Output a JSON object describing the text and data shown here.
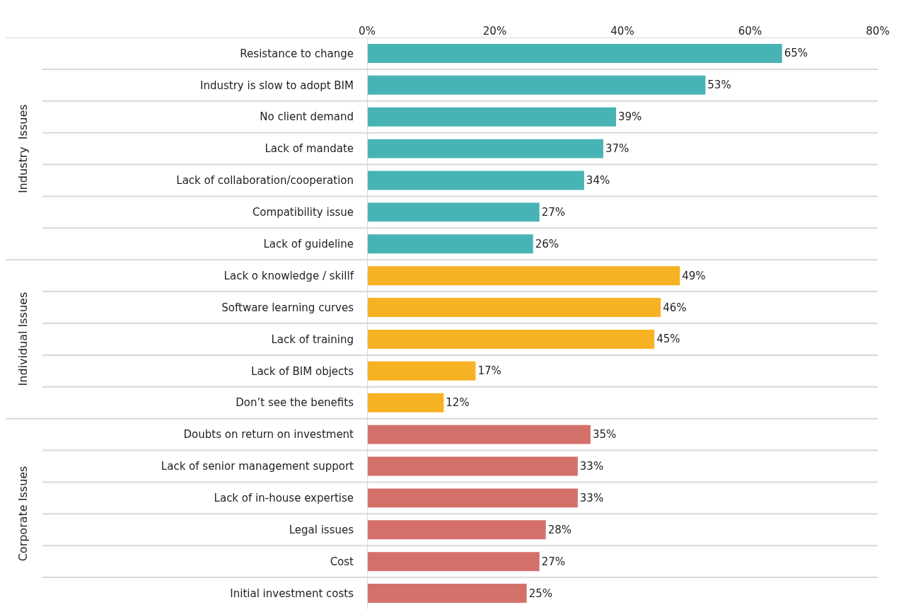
{
  "chart_data": {
    "type": "bar",
    "orientation": "horizontal",
    "categories": [
      "Resistance to change",
      "Industry is slow to adopt BIM",
      "No client demand",
      "Lack of mandate",
      "Lack of collaboration/cooperation",
      "Compatibility issue",
      "Lack of guideline",
      "Lack o knowledge / skillf",
      "Software learning curves",
      "Lack of training",
      "Lack of BIM objects",
      "Don’t see the benefits",
      "Doubts on return on investment",
      "Lack of senior management support",
      "Lack of in-house expertise",
      "Legal issues",
      "Cost",
      "Initial investment costs"
    ],
    "values": [
      65,
      53,
      39,
      37,
      34,
      27,
      26,
      49,
      46,
      45,
      17,
      12,
      35,
      33,
      33,
      28,
      27,
      25
    ],
    "value_labels": [
      "65%",
      "53%",
      "39%",
      "37%",
      "34%",
      "27%",
      "26%",
      "49%",
      "46%",
      "45%",
      "17%",
      "12%",
      "35%",
      "33%",
      "33%",
      "28%",
      "27%",
      "25%"
    ],
    "colors": [
      "#48b3b5",
      "#48b3b5",
      "#48b3b5",
      "#48b3b5",
      "#48b3b5",
      "#48b3b5",
      "#48b3b5",
      "#f6b223",
      "#f6b223",
      "#f6b223",
      "#f6b223",
      "#f6b223",
      "#d4706a",
      "#d4706a",
      "#d4706a",
      "#d4706a",
      "#d4706a",
      "#d4706a"
    ],
    "annotations": [
      "Industry  Issues",
      "Individual Issues",
      "Corporate Issues"
    ],
    "xlim": [
      0,
      80
    ],
    "xticks": [
      {
        "value": 0,
        "label": "0%"
      },
      {
        "value": 20,
        "label": "20%"
      },
      {
        "value": 40,
        "label": "40%"
      },
      {
        "value": 60,
        "label": "60%"
      },
      {
        "value": 80,
        "label": "80%"
      }
    ],
    "grid": "y"
  }
}
